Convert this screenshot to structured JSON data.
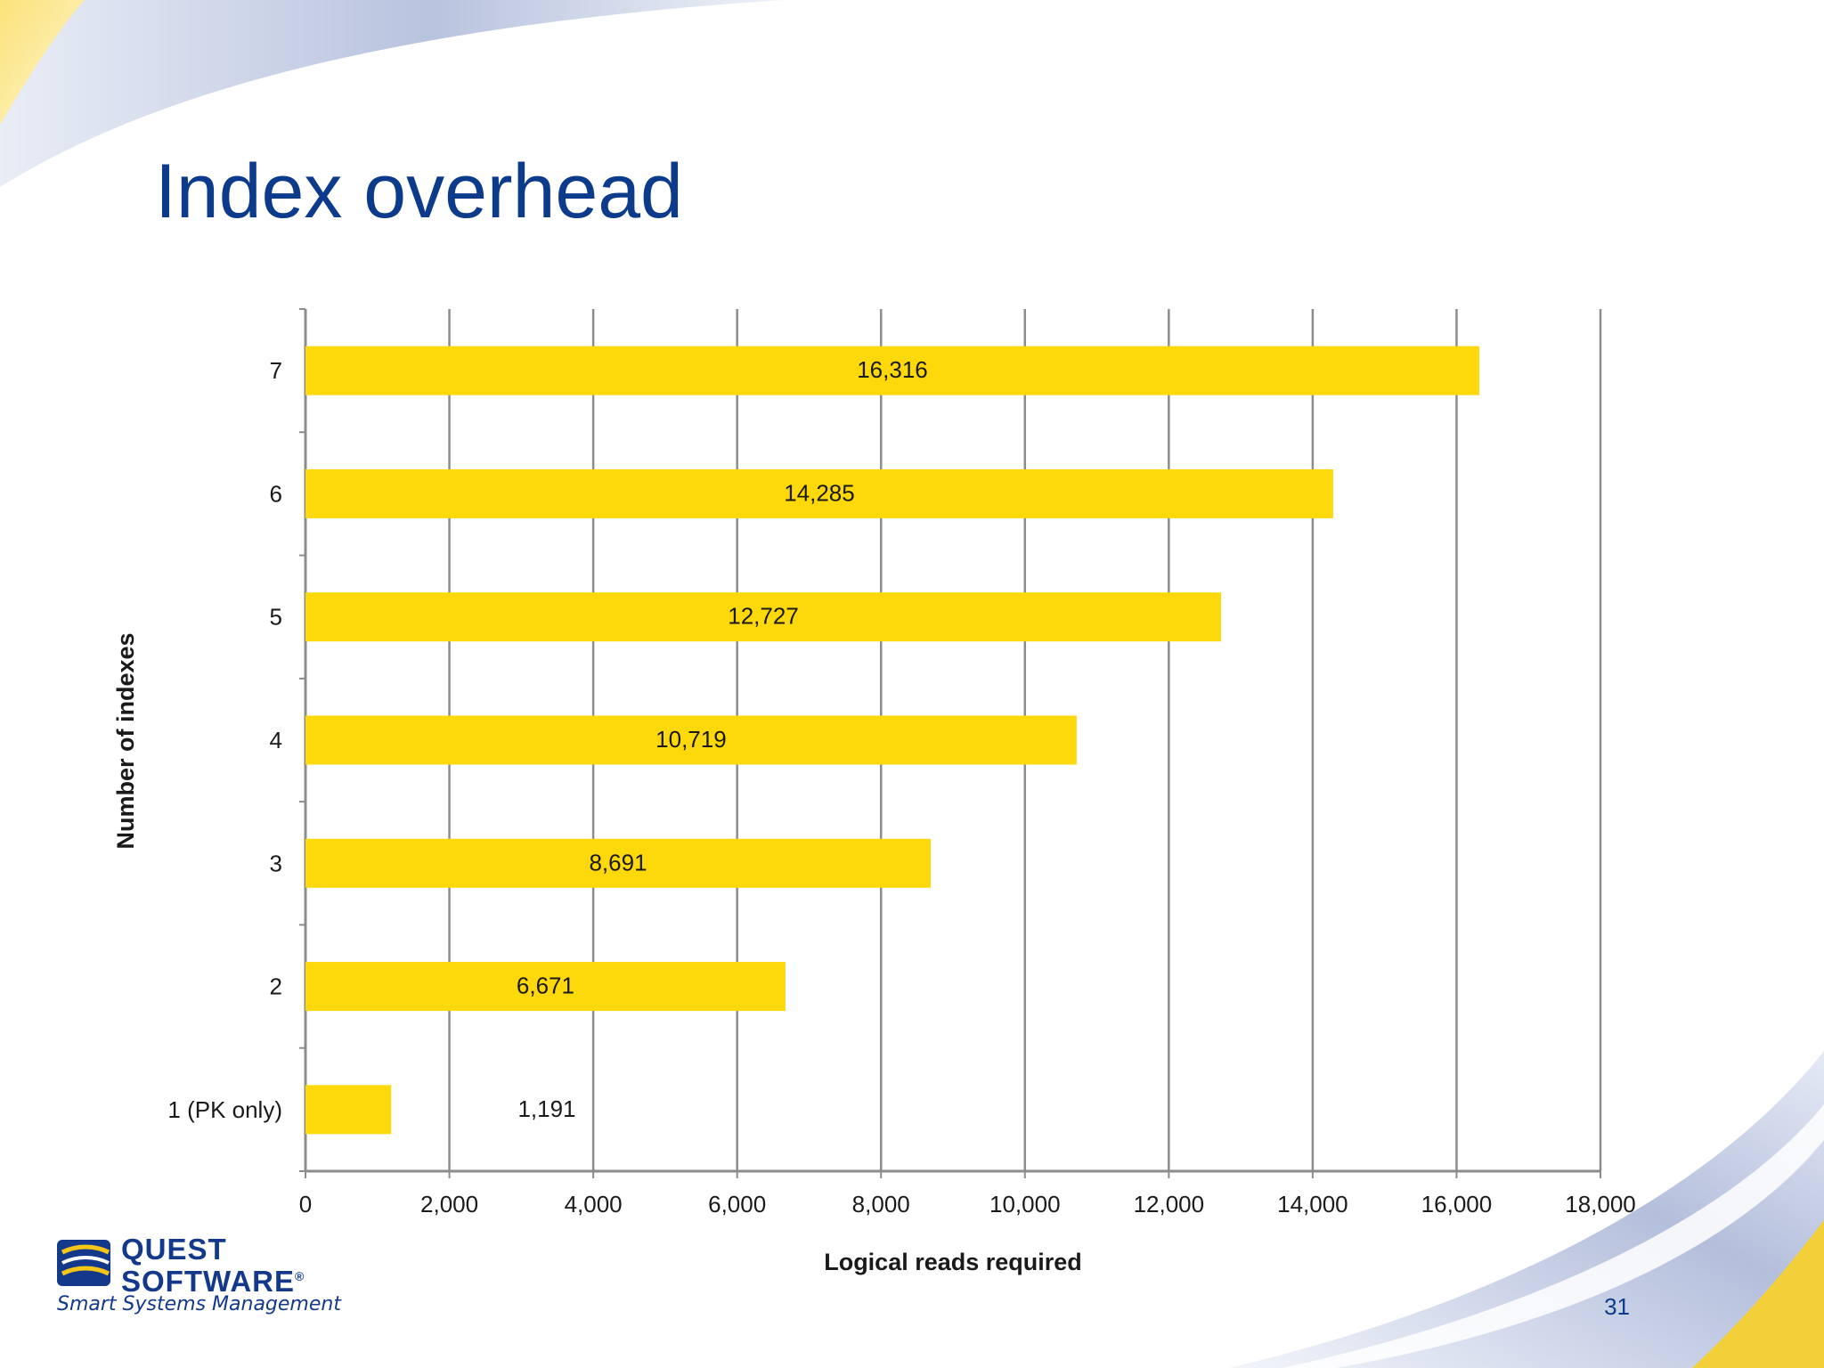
{
  "slide": {
    "title": "Index overhead",
    "page_number": "31"
  },
  "logo": {
    "name_line1": "QUEST",
    "name_line2": "SOFTWARE",
    "trademark": "®",
    "tagline": "Smart Systems Management"
  },
  "colors": {
    "bar": "#fdd80b",
    "title": "#0c3b8c",
    "grid": "#8c8c8c",
    "logo": "#14398a"
  },
  "chart_data": {
    "type": "bar",
    "orientation": "horizontal",
    "title": "",
    "xlabel": "Logical reads required",
    "ylabel": "Number of indexes",
    "categories": [
      "1 (PK only)",
      "2",
      "3",
      "4",
      "5",
      "6",
      "7"
    ],
    "values": [
      1191,
      6671,
      8691,
      10719,
      12727,
      14285,
      16316
    ],
    "data_labels": [
      "1,191",
      "6,671",
      "8,691",
      "10,719",
      "12,727",
      "14,285",
      "16,316"
    ],
    "xlim": [
      0,
      18000
    ],
    "x_ticks": [
      0,
      2000,
      4000,
      6000,
      8000,
      10000,
      12000,
      14000,
      16000,
      18000
    ],
    "x_tick_labels": [
      "0",
      "2,000",
      "4,000",
      "6,000",
      "8,000",
      "10,000",
      "12,000",
      "14,000",
      "16,000",
      "18,000"
    ],
    "grid": true,
    "legend": "none"
  }
}
